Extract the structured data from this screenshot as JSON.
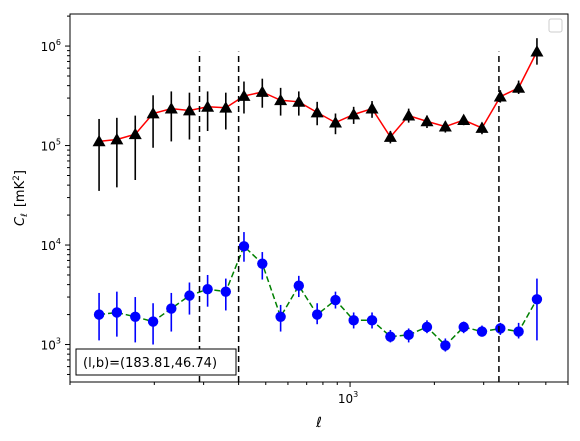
{
  "chart_data": {
    "type": "scatter",
    "title": "",
    "xlabel": "ℓ",
    "ylabel_main": "C",
    "ylabel_sub": "ℓ",
    "ylabel_unit": "[mK",
    "ylabel_unit_sup": "2",
    "ylabel_unit_close": "]",
    "x_scale": "log",
    "y_scale": "log",
    "xlim": [
      100,
      6000
    ],
    "ylim": [
      420,
      2100000
    ],
    "x_ticks_major": [
      {
        "value": 1000,
        "label_base": "10",
        "label_exp": "3"
      }
    ],
    "y_ticks_major": [
      {
        "value": 1000,
        "label_base": "10",
        "label_exp": "3"
      },
      {
        "value": 10000,
        "label_base": "10",
        "label_exp": "4"
      },
      {
        "value": 100000,
        "label_base": "10",
        "label_exp": "5"
      },
      {
        "value": 1000000,
        "label_base": "10",
        "label_exp": "6"
      }
    ],
    "legend": "top-right, empty",
    "grid": false,
    "vlines": [
      290,
      400,
      3400
    ],
    "vline_range": [
      420,
      880000
    ],
    "annotation": "(l,b)=(183.81,46.74)",
    "annotation_position": "bottom-left",
    "series": [
      {
        "marker": "triangle",
        "marker_color": "#000000",
        "line_color": "#ff0000",
        "line_style": "solid",
        "points": [
          {
            "x": 127,
            "y": 110000,
            "lo": 35000,
            "hi": 185000
          },
          {
            "x": 147,
            "y": 115000,
            "lo": 38000,
            "hi": 190000
          },
          {
            "x": 171,
            "y": 130000,
            "lo": 45000,
            "hi": 200000
          },
          {
            "x": 198,
            "y": 210000,
            "lo": 95000,
            "hi": 320000
          },
          {
            "x": 230,
            "y": 235000,
            "lo": 110000,
            "hi": 350000
          },
          {
            "x": 267,
            "y": 225000,
            "lo": 115000,
            "hi": 340000
          },
          {
            "x": 310,
            "y": 245000,
            "lo": 140000,
            "hi": 350000
          },
          {
            "x": 360,
            "y": 240000,
            "lo": 145000,
            "hi": 340000
          },
          {
            "x": 418,
            "y": 315000,
            "lo": 210000,
            "hi": 440000
          },
          {
            "x": 486,
            "y": 345000,
            "lo": 240000,
            "hi": 470000
          },
          {
            "x": 565,
            "y": 285000,
            "lo": 200000,
            "hi": 380000
          },
          {
            "x": 656,
            "y": 275000,
            "lo": 200000,
            "hi": 350000
          },
          {
            "x": 763,
            "y": 215000,
            "lo": 160000,
            "hi": 275000
          },
          {
            "x": 887,
            "y": 170000,
            "lo": 130000,
            "hi": 210000
          },
          {
            "x": 1030,
            "y": 205000,
            "lo": 165000,
            "hi": 245000
          },
          {
            "x": 1198,
            "y": 235000,
            "lo": 190000,
            "hi": 280000
          },
          {
            "x": 1393,
            "y": 122000,
            "lo": 105000,
            "hi": 140000
          },
          {
            "x": 1619,
            "y": 200000,
            "lo": 170000,
            "hi": 235000
          },
          {
            "x": 1882,
            "y": 175000,
            "lo": 150000,
            "hi": 200000
          },
          {
            "x": 2189,
            "y": 155000,
            "lo": 135000,
            "hi": 175000
          },
          {
            "x": 2545,
            "y": 180000,
            "lo": 160000,
            "hi": 200000
          },
          {
            "x": 2958,
            "y": 150000,
            "lo": 130000,
            "hi": 170000
          },
          {
            "x": 3439,
            "y": 310000,
            "lo": 270000,
            "hi": 360000
          },
          {
            "x": 3998,
            "y": 380000,
            "lo": 330000,
            "hi": 450000
          },
          {
            "x": 4648,
            "y": 880000,
            "lo": 650000,
            "hi": 1200000
          }
        ]
      },
      {
        "marker": "circle",
        "marker_color": "#0000ff",
        "line_color": "#008000",
        "line_style": "dashed",
        "points": [
          {
            "x": 127,
            "y": 2000,
            "lo": 1100,
            "hi": 3300
          },
          {
            "x": 147,
            "y": 2100,
            "lo": 1200,
            "hi": 3400
          },
          {
            "x": 171,
            "y": 1900,
            "lo": 1050,
            "hi": 3000
          },
          {
            "x": 198,
            "y": 1700,
            "lo": 1000,
            "hi": 2600
          },
          {
            "x": 230,
            "y": 2300,
            "lo": 1350,
            "hi": 3300
          },
          {
            "x": 267,
            "y": 3100,
            "lo": 2000,
            "hi": 4200
          },
          {
            "x": 310,
            "y": 3600,
            "lo": 2400,
            "hi": 5000
          },
          {
            "x": 360,
            "y": 3400,
            "lo": 2200,
            "hi": 4600
          },
          {
            "x": 418,
            "y": 9700,
            "lo": 6800,
            "hi": 13500
          },
          {
            "x": 486,
            "y": 6500,
            "lo": 4500,
            "hi": 8500
          },
          {
            "x": 565,
            "y": 1900,
            "lo": 1350,
            "hi": 2500
          },
          {
            "x": 656,
            "y": 3900,
            "lo": 3000,
            "hi": 4900
          },
          {
            "x": 763,
            "y": 2000,
            "lo": 1600,
            "hi": 2600
          },
          {
            "x": 887,
            "y": 2800,
            "lo": 2300,
            "hi": 3400
          },
          {
            "x": 1030,
            "y": 1750,
            "lo": 1450,
            "hi": 2100
          },
          {
            "x": 1198,
            "y": 1750,
            "lo": 1450,
            "hi": 2100
          },
          {
            "x": 1393,
            "y": 1200,
            "lo": 1050,
            "hi": 1400
          },
          {
            "x": 1619,
            "y": 1250,
            "lo": 1050,
            "hi": 1450
          },
          {
            "x": 1882,
            "y": 1500,
            "lo": 1300,
            "hi": 1750
          },
          {
            "x": 2189,
            "y": 980,
            "lo": 850,
            "hi": 1150
          },
          {
            "x": 2545,
            "y": 1500,
            "lo": 1300,
            "hi": 1700
          },
          {
            "x": 2958,
            "y": 1350,
            "lo": 1200,
            "hi": 1550
          },
          {
            "x": 3439,
            "y": 1450,
            "lo": 1250,
            "hi": 1650
          },
          {
            "x": 3998,
            "y": 1350,
            "lo": 1150,
            "hi": 1650
          },
          {
            "x": 4648,
            "y": 2850,
            "lo": 1100,
            "hi": 4600
          }
        ]
      }
    ]
  }
}
